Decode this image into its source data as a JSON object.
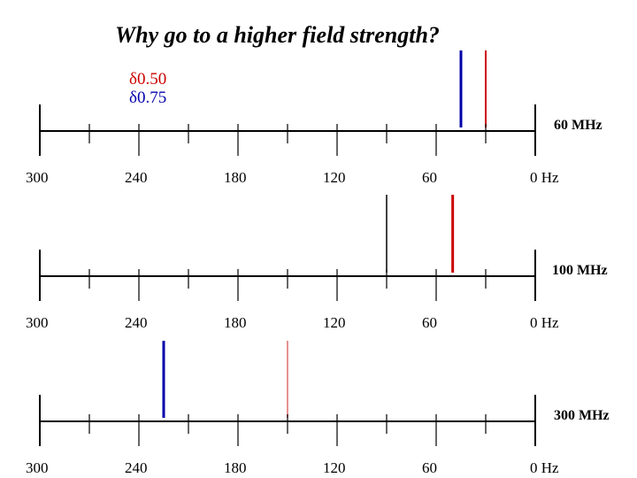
{
  "title": "Why go to a higher field strength?",
  "legend": [
    {
      "label": "δ0.50",
      "color": "#cc0000"
    },
    {
      "label": "δ0.75",
      "color": "#0000aa"
    }
  ],
  "tick_labels": [
    "300",
    "240",
    "180",
    "120",
    "60",
    "0 Hz"
  ],
  "colors": {
    "axis": "#000000",
    "delta_050": "#cc0000",
    "delta_075": "#0000aa",
    "neutral": "#000000",
    "light_red": "#e89090"
  },
  "chart_data": [
    {
      "type": "diagram",
      "field_label": "60 MHz",
      "x_unit": "Hz",
      "xlim": [
        300,
        0
      ],
      "tick_values": [
        300,
        240,
        180,
        120,
        60,
        0
      ],
      "peaks": [
        {
          "hz": 45,
          "color": "#0000aa",
          "width": 3
        },
        {
          "hz": 30,
          "color": "#cc0000",
          "width": 2
        }
      ]
    },
    {
      "type": "diagram",
      "field_label": "100 MHz",
      "x_unit": "Hz",
      "xlim": [
        300,
        0
      ],
      "tick_values": [
        300,
        240,
        180,
        120,
        60,
        0
      ],
      "peaks": [
        {
          "hz": 90,
          "color": "#000000",
          "width": 1.5
        },
        {
          "hz": 50,
          "color": "#cc0000",
          "width": 3
        }
      ]
    },
    {
      "type": "diagram",
      "field_label": "300 MHz",
      "x_unit": "Hz",
      "xlim": [
        300,
        0
      ],
      "tick_values": [
        300,
        240,
        180,
        120,
        60,
        0
      ],
      "peaks": [
        {
          "hz": 225,
          "color": "#0000aa",
          "width": 3
        },
        {
          "hz": 150,
          "color": "#e89090",
          "width": 2
        }
      ]
    }
  ]
}
